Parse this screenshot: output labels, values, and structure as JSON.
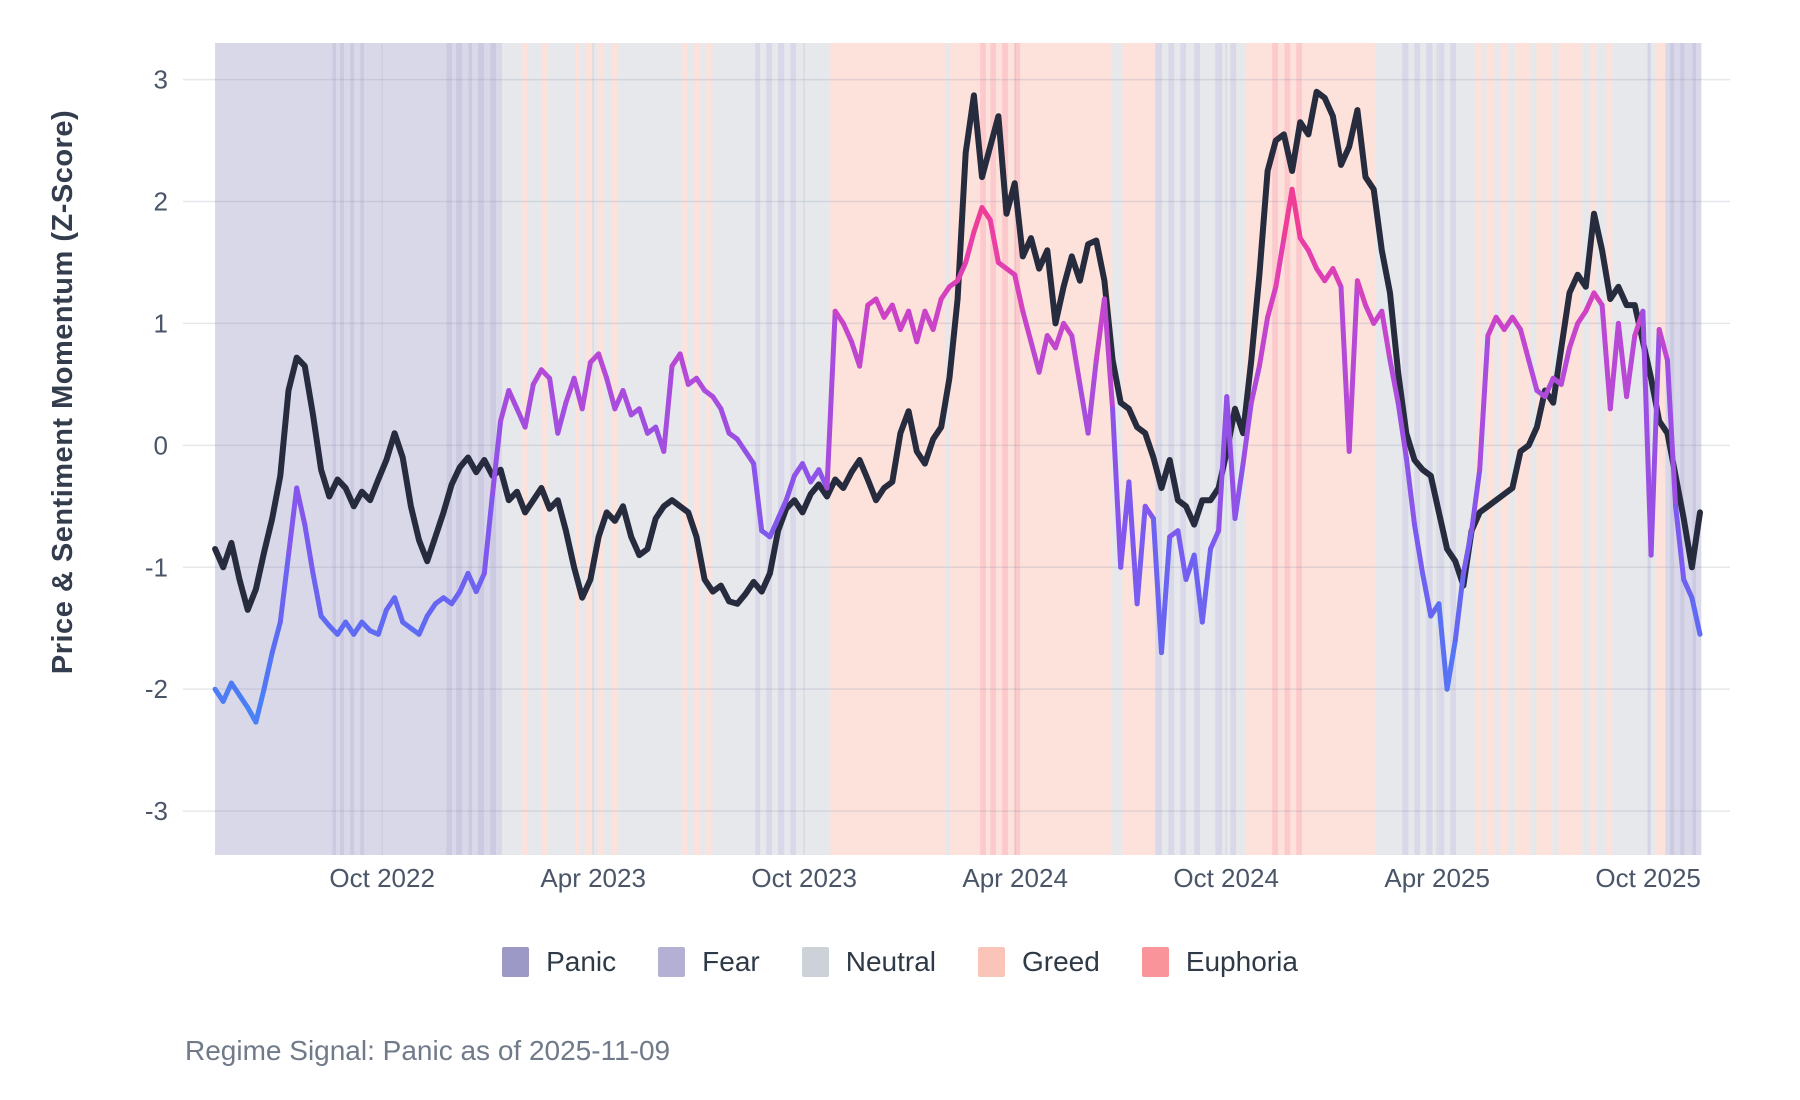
{
  "chart_data": {
    "type": "line",
    "title": "",
    "xlabel": "",
    "ylabel": "Price & Sentiment Momentum (Z-Score)",
    "subtitle": "Regime Signal: Panic as of 2025-11-09",
    "grid": true,
    "legend_position": "bottom-center",
    "xlim": [
      2022.278,
      2025.944
    ],
    "ylim": [
      -3.36,
      3.3
    ],
    "xticks": [
      {
        "v": 2022.75,
        "label": "Oct 2022"
      },
      {
        "v": 2023.25,
        "label": "Apr 2023"
      },
      {
        "v": 2023.75,
        "label": "Oct 2023"
      },
      {
        "v": 2024.25,
        "label": "Apr 2024"
      },
      {
        "v": 2024.75,
        "label": "Oct 2024"
      },
      {
        "v": 2025.25,
        "label": "Apr 2025"
      },
      {
        "v": 2025.75,
        "label": "Oct 2025"
      }
    ],
    "yticks": [
      {
        "v": -3,
        "label": "-3"
      },
      {
        "v": -2,
        "label": "-2"
      },
      {
        "v": -1,
        "label": "-1"
      },
      {
        "v": 0,
        "label": "0"
      },
      {
        "v": 1,
        "label": "1"
      },
      {
        "v": 2,
        "label": "2"
      },
      {
        "v": 3,
        "label": "3"
      }
    ],
    "legend": {
      "entries": [
        {
          "label": "Panic",
          "swatch": "#9D99C6"
        },
        {
          "label": "Fear",
          "swatch": "#B3B0D4"
        },
        {
          "label": "Neutral",
          "swatch": "#CDD1D8"
        },
        {
          "label": "Greed",
          "swatch": "#FBC4B9"
        },
        {
          "label": "Euphoria",
          "swatch": "#F9959A"
        }
      ]
    },
    "regime_colors": {
      "panic": "#8F8ABD",
      "fear": "#ABA8CE",
      "neutral": "#C8CCD4",
      "greed": "#FABDB0",
      "euphoria": "#F8898E"
    },
    "band_opacity": 0.45,
    "bands": [
      [
        2022.354,
        2022.632,
        "fear"
      ],
      [
        2022.632,
        2022.641,
        "panic"
      ],
      [
        2022.641,
        2022.65,
        "fear"
      ],
      [
        2022.65,
        2022.66,
        "panic"
      ],
      [
        2022.66,
        2022.674,
        "fear"
      ],
      [
        2022.674,
        2022.684,
        "panic"
      ],
      [
        2022.684,
        2022.698,
        "fear"
      ],
      [
        2022.698,
        2022.707,
        "panic"
      ],
      [
        2022.707,
        2022.902,
        "fear"
      ],
      [
        2022.902,
        2022.916,
        "panic"
      ],
      [
        2022.916,
        2022.925,
        "fear"
      ],
      [
        2022.925,
        2022.94,
        "panic"
      ],
      [
        2022.94,
        2022.954,
        "fear"
      ],
      [
        2022.954,
        2022.963,
        "panic"
      ],
      [
        2022.963,
        2022.977,
        "fear"
      ],
      [
        2022.977,
        2022.992,
        "panic"
      ],
      [
        2022.992,
        2023.006,
        "fear"
      ],
      [
        2023.006,
        2023.02,
        "panic"
      ],
      [
        2023.02,
        2023.034,
        "fear"
      ],
      [
        2023.034,
        2023.082,
        "neutral"
      ],
      [
        2023.082,
        2023.096,
        "greed"
      ],
      [
        2023.096,
        2023.129,
        "neutral"
      ],
      [
        2023.129,
        2023.143,
        "greed"
      ],
      [
        2023.143,
        2023.207,
        "neutral"
      ],
      [
        2023.207,
        2023.219,
        "greed"
      ],
      [
        2023.219,
        2023.233,
        "neutral"
      ],
      [
        2023.233,
        2023.248,
        "greed"
      ],
      [
        2023.248,
        2023.262,
        "neutral"
      ],
      [
        2023.262,
        2023.276,
        "greed"
      ],
      [
        2023.276,
        2023.295,
        "neutral"
      ],
      [
        2023.295,
        2023.309,
        "greed"
      ],
      [
        2023.309,
        2023.461,
        "neutral"
      ],
      [
        2023.461,
        2023.475,
        "greed"
      ],
      [
        2023.475,
        2023.489,
        "neutral"
      ],
      [
        2023.489,
        2023.504,
        "greed"
      ],
      [
        2023.504,
        2023.518,
        "neutral"
      ],
      [
        2023.518,
        2023.532,
        "greed"
      ],
      [
        2023.532,
        2023.634,
        "neutral"
      ],
      [
        2023.634,
        2023.646,
        "fear"
      ],
      [
        2023.646,
        2023.66,
        "neutral"
      ],
      [
        2023.66,
        2023.674,
        "fear"
      ],
      [
        2023.674,
        2023.688,
        "neutral"
      ],
      [
        2023.688,
        2023.703,
        "fear"
      ],
      [
        2023.703,
        2023.717,
        "neutral"
      ],
      [
        2023.717,
        2023.731,
        "fear"
      ],
      [
        2023.731,
        2023.812,
        "neutral"
      ],
      [
        2023.812,
        2024.084,
        "greed"
      ],
      [
        2024.084,
        2024.096,
        "neutral"
      ],
      [
        2024.096,
        2024.167,
        "greed"
      ],
      [
        2024.167,
        2024.181,
        "euphoria"
      ],
      [
        2024.181,
        2024.191,
        "greed"
      ],
      [
        2024.191,
        2024.205,
        "euphoria"
      ],
      [
        2024.205,
        2024.219,
        "greed"
      ],
      [
        2024.219,
        2024.233,
        "euphoria"
      ],
      [
        2024.233,
        2024.248,
        "greed"
      ],
      [
        2024.248,
        2024.262,
        "euphoria"
      ],
      [
        2024.262,
        2024.48,
        "greed"
      ],
      [
        2024.48,
        2024.504,
        "neutral"
      ],
      [
        2024.504,
        2024.582,
        "greed"
      ],
      [
        2024.582,
        2024.598,
        "fear"
      ],
      [
        2024.598,
        2024.613,
        "neutral"
      ],
      [
        2024.613,
        2024.627,
        "fear"
      ],
      [
        2024.627,
        2024.641,
        "neutral"
      ],
      [
        2024.641,
        2024.655,
        "fear"
      ],
      [
        2024.655,
        2024.674,
        "neutral"
      ],
      [
        2024.674,
        2024.688,
        "fear"
      ],
      [
        2024.688,
        2024.724,
        "neutral"
      ],
      [
        2024.724,
        2024.741,
        "fear"
      ],
      [
        2024.741,
        2024.76,
        "neutral"
      ],
      [
        2024.76,
        2024.774,
        "fear"
      ],
      [
        2024.774,
        2024.795,
        "neutral"
      ],
      [
        2024.795,
        2024.859,
        "greed"
      ],
      [
        2024.859,
        2024.873,
        "euphoria"
      ],
      [
        2024.873,
        2024.888,
        "greed"
      ],
      [
        2024.888,
        2024.902,
        "euphoria"
      ],
      [
        2024.902,
        2024.916,
        "greed"
      ],
      [
        2024.916,
        2024.93,
        "euphoria"
      ],
      [
        2024.93,
        2025.103,
        "greed"
      ],
      [
        2025.103,
        2025.167,
        "neutral"
      ],
      [
        2025.167,
        2025.182,
        "fear"
      ],
      [
        2025.182,
        2025.196,
        "neutral"
      ],
      [
        2025.196,
        2025.21,
        "fear"
      ],
      [
        2025.21,
        2025.224,
        "neutral"
      ],
      [
        2025.224,
        2025.239,
        "fear"
      ],
      [
        2025.239,
        2025.253,
        "neutral"
      ],
      [
        2025.253,
        2025.267,
        "fear"
      ],
      [
        2025.267,
        2025.281,
        "neutral"
      ],
      [
        2025.281,
        2025.295,
        "fear"
      ],
      [
        2025.295,
        2025.341,
        "neutral"
      ],
      [
        2025.341,
        2025.357,
        "greed"
      ],
      [
        2025.357,
        2025.367,
        "neutral"
      ],
      [
        2025.367,
        2025.386,
        "greed"
      ],
      [
        2025.386,
        2025.4,
        "neutral"
      ],
      [
        2025.4,
        2025.419,
        "greed"
      ],
      [
        2025.419,
        2025.435,
        "neutral"
      ],
      [
        2025.435,
        2025.471,
        "greed"
      ],
      [
        2025.471,
        2025.485,
        "neutral"
      ],
      [
        2025.485,
        2025.523,
        "greed"
      ],
      [
        2025.523,
        2025.537,
        "neutral"
      ],
      [
        2025.537,
        2025.594,
        "greed"
      ],
      [
        2025.594,
        2025.613,
        "neutral"
      ],
      [
        2025.613,
        2025.627,
        "greed"
      ],
      [
        2025.627,
        2025.651,
        "neutral"
      ],
      [
        2025.651,
        2025.665,
        "greed"
      ],
      [
        2025.665,
        2025.75,
        "neutral"
      ],
      [
        2025.75,
        2025.757,
        "fear"
      ],
      [
        2025.757,
        2025.767,
        "neutral"
      ],
      [
        2025.767,
        2025.791,
        "greed"
      ],
      [
        2025.791,
        2025.802,
        "fear"
      ],
      [
        2025.802,
        2025.812,
        "panic"
      ],
      [
        2025.812,
        2025.826,
        "fear"
      ],
      [
        2025.826,
        2025.836,
        "panic"
      ],
      [
        2025.836,
        2025.855,
        "fear"
      ],
      [
        2025.855,
        2025.864,
        "panic"
      ],
      [
        2025.864,
        2025.876,
        "fear"
      ]
    ],
    "x_start": 2022.354,
    "x_end": 2025.873,
    "series": [
      {
        "name": "price-momentum",
        "style": "solid",
        "color": "#272B3E",
        "width": 6,
        "values": [
          -0.85,
          -1.0,
          -0.8,
          -1.1,
          -1.35,
          -1.18,
          -0.88,
          -0.6,
          -0.25,
          0.45,
          0.72,
          0.65,
          0.25,
          -0.2,
          -0.42,
          -0.28,
          -0.35,
          -0.5,
          -0.38,
          -0.45,
          -0.28,
          -0.12,
          0.1,
          -0.1,
          -0.5,
          -0.78,
          -0.95,
          -0.75,
          -0.55,
          -0.32,
          -0.18,
          -0.1,
          -0.22,
          -0.12,
          -0.25,
          -0.2,
          -0.45,
          -0.38,
          -0.55,
          -0.45,
          -0.35,
          -0.52,
          -0.45,
          -0.7,
          -1.0,
          -1.25,
          -1.1,
          -0.75,
          -0.55,
          -0.62,
          -0.5,
          -0.75,
          -0.9,
          -0.85,
          -0.6,
          -0.5,
          -0.45,
          -0.5,
          -0.55,
          -0.75,
          -1.1,
          -1.2,
          -1.15,
          -1.28,
          -1.3,
          -1.22,
          -1.12,
          -1.2,
          -1.05,
          -0.7,
          -0.52,
          -0.45,
          -0.55,
          -0.4,
          -0.32,
          -0.42,
          -0.28,
          -0.35,
          -0.22,
          -0.12,
          -0.28,
          -0.45,
          -0.35,
          -0.3,
          0.1,
          0.28,
          -0.05,
          -0.15,
          0.05,
          0.15,
          0.55,
          1.2,
          2.4,
          2.87,
          2.2,
          2.45,
          2.7,
          1.9,
          2.15,
          1.55,
          1.7,
          1.45,
          1.6,
          1.0,
          1.3,
          1.55,
          1.35,
          1.65,
          1.68,
          1.35,
          0.7,
          0.35,
          0.3,
          0.15,
          0.1,
          -0.1,
          -0.35,
          -0.12,
          -0.45,
          -0.5,
          -0.65,
          -0.45,
          -0.45,
          -0.35,
          -0.05,
          0.3,
          0.1,
          0.7,
          1.4,
          2.25,
          2.5,
          2.55,
          2.25,
          2.65,
          2.55,
          2.9,
          2.85,
          2.7,
          2.3,
          2.45,
          2.75,
          2.2,
          2.1,
          1.6,
          1.25,
          0.6,
          0.1,
          -0.12,
          -0.2,
          -0.25,
          -0.55,
          -0.85,
          -0.95,
          -1.15,
          -0.7,
          -0.55,
          -0.5,
          -0.45,
          -0.4,
          -0.35,
          -0.05,
          0.0,
          0.15,
          0.45,
          0.35,
          0.8,
          1.25,
          1.4,
          1.3,
          1.9,
          1.6,
          1.2,
          1.3,
          1.15,
          1.15,
          0.85,
          0.55,
          0.2,
          0.1,
          -0.25,
          -0.6,
          -1.0,
          -0.55
        ]
      },
      {
        "name": "sentiment-momentum",
        "style": "value-gradient",
        "width": 5,
        "colormap": [
          [
            -2.5,
            "#3E8BF7"
          ],
          [
            -1.5,
            "#5E6BF2"
          ],
          [
            -0.75,
            "#7E59EF"
          ],
          [
            0.0,
            "#9750E4"
          ],
          [
            0.6,
            "#B44AD8"
          ],
          [
            1.2,
            "#D341C1"
          ],
          [
            1.7,
            "#EC3FA4"
          ],
          [
            2.2,
            "#F43B83"
          ]
        ],
        "values": [
          -2.0,
          -2.1,
          -1.95,
          -2.05,
          -2.15,
          -2.27,
          -2.0,
          -1.7,
          -1.45,
          -0.9,
          -0.35,
          -0.65,
          -1.05,
          -1.4,
          -1.48,
          -1.55,
          -1.45,
          -1.55,
          -1.45,
          -1.52,
          -1.55,
          -1.35,
          -1.25,
          -1.45,
          -1.5,
          -1.55,
          -1.4,
          -1.3,
          -1.25,
          -1.3,
          -1.2,
          -1.05,
          -1.2,
          -1.05,
          -0.4,
          0.2,
          0.45,
          0.3,
          0.15,
          0.5,
          0.62,
          0.55,
          0.1,
          0.35,
          0.55,
          0.3,
          0.68,
          0.75,
          0.55,
          0.3,
          0.45,
          0.25,
          0.3,
          0.1,
          0.15,
          -0.05,
          0.65,
          0.75,
          0.5,
          0.55,
          0.45,
          0.4,
          0.3,
          0.1,
          0.05,
          -0.05,
          -0.15,
          -0.7,
          -0.75,
          -0.6,
          -0.45,
          -0.25,
          -0.15,
          -0.3,
          -0.2,
          -0.35,
          1.1,
          1.0,
          0.85,
          0.65,
          1.15,
          1.2,
          1.05,
          1.15,
          0.95,
          1.1,
          0.85,
          1.1,
          0.95,
          1.2,
          1.3,
          1.35,
          1.5,
          1.75,
          1.95,
          1.85,
          1.5,
          1.45,
          1.4,
          1.1,
          0.85,
          0.6,
          0.9,
          0.8,
          1.0,
          0.9,
          0.5,
          0.1,
          0.7,
          1.2,
          0.3,
          -1.0,
          -0.3,
          -1.3,
          -0.5,
          -0.6,
          -1.7,
          -0.75,
          -0.7,
          -1.1,
          -0.9,
          -1.45,
          -0.85,
          -0.7,
          0.4,
          -0.6,
          -0.15,
          0.35,
          0.65,
          1.05,
          1.3,
          1.7,
          2.1,
          1.7,
          1.6,
          1.45,
          1.35,
          1.45,
          1.3,
          -0.05,
          1.35,
          1.15,
          1.0,
          1.1,
          0.7,
          0.35,
          -0.1,
          -0.65,
          -1.05,
          -1.4,
          -1.3,
          -2.0,
          -1.6,
          -1.05,
          -0.7,
          -0.2,
          0.9,
          1.05,
          0.95,
          1.05,
          0.95,
          0.7,
          0.45,
          0.4,
          0.55,
          0.5,
          0.8,
          1.0,
          1.1,
          1.25,
          1.15,
          0.3,
          1.0,
          0.4,
          0.9,
          1.1,
          -0.9,
          0.95,
          0.7,
          -0.5,
          -1.1,
          -1.25,
          -1.55
        ]
      }
    ]
  }
}
